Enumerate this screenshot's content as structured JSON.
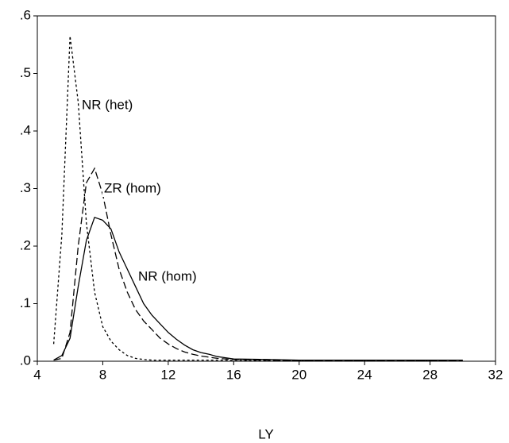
{
  "chart_data": {
    "type": "line",
    "x_label": "LY",
    "x": [
      4.5,
      5,
      5.5,
      6,
      6.5,
      7,
      7.5,
      8,
      8.5,
      9,
      9.5,
      10,
      10.5,
      11,
      11.5,
      12,
      12.5,
      13,
      13.5,
      14,
      14.5,
      15,
      15.5,
      16,
      18,
      20,
      22,
      24,
      26,
      28,
      30
    ],
    "series": [
      {
        "name": "NR (het)",
        "color": "#000000",
        "dash": "3,3",
        "values": [
          null,
          0.03,
          0.22,
          0.565,
          0.45,
          0.24,
          0.12,
          0.06,
          0.035,
          0.02,
          0.01,
          0.005,
          0.003,
          0.002,
          0.002,
          0.002,
          0.002,
          0.002,
          0.002,
          0.002,
          0.002,
          0.002,
          0.002,
          0.002,
          0.001,
          0.001,
          0.001,
          0.001,
          0.001,
          0.001,
          0.001
        ]
      },
      {
        "name": "ZR (hom)",
        "color": "#000000",
        "dash": "9,4",
        "values": [
          null,
          0.002,
          0.005,
          0.05,
          0.2,
          0.31,
          0.335,
          0.29,
          0.22,
          0.16,
          0.12,
          0.09,
          0.07,
          0.055,
          0.04,
          0.03,
          0.022,
          0.016,
          0.012,
          0.009,
          0.007,
          0.005,
          0.004,
          0.003,
          0.002,
          0.001,
          0.001,
          0.001,
          0.001,
          0.001,
          0.001
        ]
      },
      {
        "name": "NR (hom)",
        "color": "#000000",
        "dash": "none",
        "values": [
          null,
          0.002,
          0.01,
          0.04,
          0.13,
          0.21,
          0.25,
          0.245,
          0.23,
          0.19,
          0.16,
          0.13,
          0.1,
          0.08,
          0.065,
          0.05,
          0.038,
          0.028,
          0.02,
          0.015,
          0.012,
          0.008,
          0.006,
          0.004,
          0.003,
          0.002,
          0.002,
          0.002,
          0.002,
          0.002,
          0.002
        ]
      }
    ],
    "xlim": [
      4,
      32
    ],
    "xticks": [
      4,
      8,
      12,
      16,
      20,
      24,
      28,
      32
    ],
    "ylim": [
      0,
      0.6
    ],
    "yticks": [
      {
        "value": 0,
        "label": ".0"
      },
      {
        "value": 0.1,
        "label": ".1"
      },
      {
        "value": 0.2,
        "label": ".2"
      },
      {
        "value": 0.3,
        "label": ".3"
      },
      {
        "value": 0.4,
        "label": ".4"
      },
      {
        "value": 0.5,
        "label": ".5"
      },
      {
        "value": 0.6,
        "label": ".6"
      }
    ],
    "grid": false
  }
}
